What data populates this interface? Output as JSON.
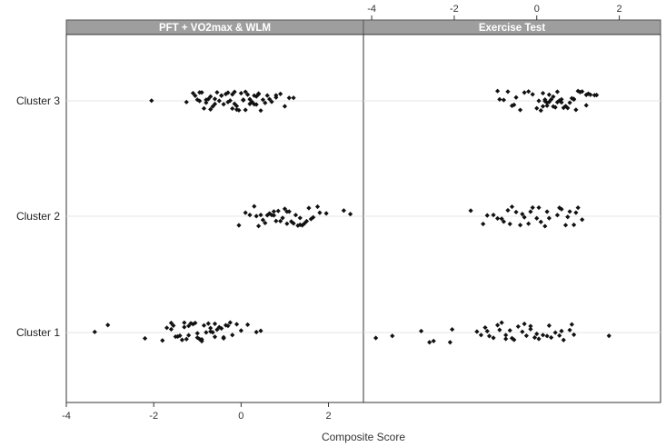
{
  "chart_data": {
    "type": "scatter",
    "xlabel": "Composite Score",
    "categories": [
      "Cluster 1",
      "Cluster 2",
      "Cluster 3"
    ],
    "panels": [
      {
        "name": "PFT + VO2max & WLM",
        "xlim": [
          -4,
          2.8
        ],
        "xticks": [
          -4,
          -2,
          0,
          2
        ],
        "series": [
          {
            "name": "Cluster 3",
            "values": [
              -2.05,
              -1.25,
              -1.1,
              -1.05,
              -1.0,
              -0.95,
              -0.9,
              -0.85,
              -0.8,
              -0.75,
              -0.7,
              -0.65,
              -0.6,
              -0.55,
              -0.5,
              -0.45,
              -0.4,
              -0.35,
              -0.3,
              -0.25,
              -0.2,
              -0.15,
              -0.1,
              -0.05,
              0.0,
              0.05,
              0.1,
              0.15,
              0.2,
              0.25,
              0.3,
              0.35,
              0.4,
              0.45,
              0.5,
              0.6,
              0.7,
              0.8,
              0.9,
              1.0,
              1.1,
              1.2,
              -0.95,
              -0.7,
              -0.45,
              -0.2,
              0.05,
              0.3,
              0.55,
              -0.6,
              -0.1,
              0.2,
              0.4,
              0.8,
              -0.8,
              -0.3,
              0.1,
              0.65,
              0.35,
              -0.15
            ]
          },
          {
            "name": "Cluster 2",
            "values": [
              -0.05,
              0.1,
              0.2,
              0.35,
              0.45,
              0.55,
              0.6,
              0.7,
              0.75,
              0.85,
              0.9,
              1.0,
              1.05,
              1.15,
              1.2,
              1.3,
              1.35,
              1.45,
              1.5,
              1.6,
              1.65,
              1.75,
              1.8,
              1.95,
              2.35,
              2.5,
              0.5,
              0.8,
              1.1,
              1.4,
              0.3,
              0.65,
              0.95,
              1.25,
              1.55,
              0.4,
              0.75,
              1.05,
              1.35
            ]
          },
          {
            "name": "Cluster 1",
            "values": [
              -3.35,
              -3.05,
              -2.2,
              -1.8,
              -1.7,
              -1.6,
              -1.55,
              -1.5,
              -1.45,
              -1.4,
              -1.35,
              -1.3,
              -1.25,
              -1.2,
              -1.15,
              -1.1,
              -1.05,
              -1.0,
              -0.95,
              -0.9,
              -0.85,
              -0.8,
              -0.75,
              -0.7,
              -0.65,
              -0.6,
              -0.55,
              -0.5,
              -0.45,
              -0.4,
              -0.35,
              -0.3,
              -0.25,
              -0.2,
              -0.1,
              0.0,
              0.15,
              0.35,
              0.45,
              -1.3,
              -1.0,
              -0.7,
              -0.4,
              -1.6,
              -0.9,
              -0.6,
              -1.2
            ]
          }
        ]
      },
      {
        "name": "Exercise Test",
        "xlim": [
          -4.2,
          3
        ],
        "xticks": [
          -4,
          -2,
          0,
          2
        ],
        "series": [
          {
            "name": "Cluster 3",
            "values": [
              -0.95,
              -0.9,
              -0.8,
              -0.7,
              -0.6,
              -0.5,
              -0.4,
              -0.3,
              -0.2,
              -0.1,
              0.0,
              0.1,
              0.15,
              0.2,
              0.25,
              0.3,
              0.35,
              0.4,
              0.45,
              0.5,
              0.55,
              0.6,
              0.7,
              0.8,
              0.9,
              1.0,
              1.1,
              1.2,
              1.3,
              1.4,
              1.45,
              0.25,
              0.5,
              0.75,
              1.05,
              0.05,
              0.3,
              0.6,
              0.9,
              1.2,
              -0.55,
              0.15,
              0.4,
              0.65,
              0.95,
              1.25,
              0.2,
              0.85
            ]
          },
          {
            "name": "Cluster 2",
            "values": [
              -1.6,
              -1.3,
              -1.2,
              -1.05,
              -0.95,
              -0.85,
              -0.7,
              -0.6,
              -0.5,
              -0.4,
              -0.3,
              -0.2,
              -0.1,
              0.0,
              0.1,
              0.2,
              0.3,
              0.5,
              0.6,
              0.7,
              0.8,
              0.9,
              1.0,
              1.1,
              -0.8,
              -0.35,
              0.05,
              0.55,
              0.95,
              -0.65,
              -0.15,
              0.25,
              0.75
            ]
          },
          {
            "name": "Cluster 1",
            "values": [
              -3.9,
              -3.5,
              -2.8,
              -2.6,
              -2.5,
              -2.1,
              -2.05,
              -1.45,
              -1.35,
              -1.25,
              -1.15,
              -1.05,
              -0.95,
              -0.85,
              -0.75,
              -0.65,
              -0.55,
              -0.45,
              -0.35,
              -0.25,
              -0.15,
              -0.05,
              0.05,
              0.15,
              0.25,
              0.35,
              0.45,
              0.55,
              0.65,
              0.8,
              0.85,
              0.9,
              1.75,
              -1.2,
              -0.9,
              -0.6,
              -0.3,
              0.0,
              0.3,
              0.6,
              -0.75,
              -0.15
            ]
          }
        ]
      }
    ]
  }
}
